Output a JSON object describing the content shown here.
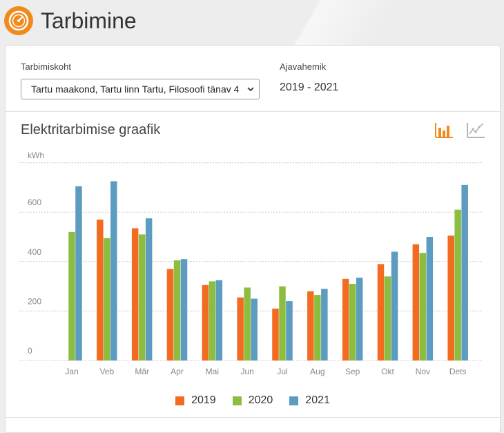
{
  "page": {
    "title": "Tarbimine",
    "logo_icon": "gauge-icon",
    "accent": "#f08a1c"
  },
  "filters": {
    "location_label": "Tarbimiskoht",
    "location_value": "Tartu maakond, Tartu linn Tartu, Filosoofi tänav 4",
    "period_label": "Ajavahemik",
    "period_value": "2019 - 2021"
  },
  "chart_section": {
    "title": "Elektritarbimise graafik",
    "bar_chart_button_icon": "bar-chart-icon",
    "line_chart_button_icon": "line-chart-icon",
    "active_view": "bar"
  },
  "chart_data": {
    "type": "bar",
    "ylabel": "kWh",
    "ylim": [
      0,
      750
    ],
    "yticks": [
      0,
      200,
      400,
      600
    ],
    "grid": true,
    "legend_position": "bottom",
    "categories": [
      "Jan",
      "Veb",
      "Mär",
      "Apr",
      "Mai",
      "Jun",
      "Jul",
      "Aug",
      "Sep",
      "Okt",
      "Nov",
      "Dets"
    ],
    "series": [
      {
        "name": "2019",
        "color": "#f26b21",
        "values": [
          0,
          570,
          535,
          370,
          305,
          255,
          210,
          280,
          330,
          390,
          470,
          505
        ]
      },
      {
        "name": "2020",
        "color": "#8cbd3f",
        "values": [
          520,
          495,
          510,
          405,
          320,
          295,
          300,
          265,
          310,
          340,
          435,
          610
        ]
      },
      {
        "name": "2021",
        "color": "#5b9cc0",
        "values": [
          705,
          725,
          575,
          410,
          325,
          250,
          240,
          290,
          335,
          440,
          500,
          710
        ]
      }
    ]
  }
}
